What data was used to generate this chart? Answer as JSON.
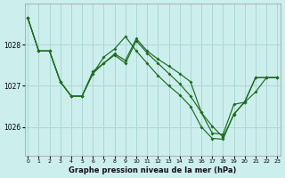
{
  "title": "Graphe pression niveau de la mer (hPa)",
  "bg_color": "#cceeed",
  "grid_color": "#aad8d5",
  "line_color": "#1f6b1f",
  "xlim": [
    0,
    23
  ],
  "ylim": [
    1025.3,
    1029.0
  ],
  "yticks": [
    1026,
    1027,
    1028
  ],
  "xticks": [
    0,
    1,
    2,
    3,
    4,
    5,
    6,
    7,
    8,
    9,
    10,
    11,
    12,
    13,
    14,
    15,
    16,
    17,
    18,
    19,
    20,
    21,
    22,
    23
  ],
  "series1_y": [
    1028.65,
    1027.85,
    1027.85,
    1027.1,
    1026.75,
    1026.75,
    1027.3,
    1027.55,
    1027.75,
    1027.55,
    1028.1,
    1027.8,
    1027.55,
    1027.3,
    1027.05,
    1026.75,
    1026.35,
    1025.85,
    1025.82,
    1026.55,
    1026.6,
    1026.85,
    1027.2,
    1027.2
  ],
  "series2_y": [
    1028.65,
    1027.85,
    1027.85,
    1027.1,
    1026.75,
    1026.75,
    1027.3,
    1027.7,
    1027.9,
    1028.2,
    1027.85,
    1027.55,
    1027.25,
    1027.0,
    1026.78,
    1026.5,
    1026.0,
    1025.72,
    1025.7,
    1026.32,
    1026.6,
    1027.2,
    1027.2,
    1027.2
  ],
  "series3_y": [
    1028.65,
    1027.85,
    1027.85,
    1027.1,
    1026.75,
    1026.75,
    1027.35,
    1027.55,
    1027.78,
    1027.62,
    1028.15,
    1027.85,
    1027.65,
    1027.48,
    1027.3,
    1027.1,
    1026.35,
    1026.02,
    1025.75,
    1026.3,
    1026.62,
    1027.2,
    1027.2,
    1027.2
  ]
}
